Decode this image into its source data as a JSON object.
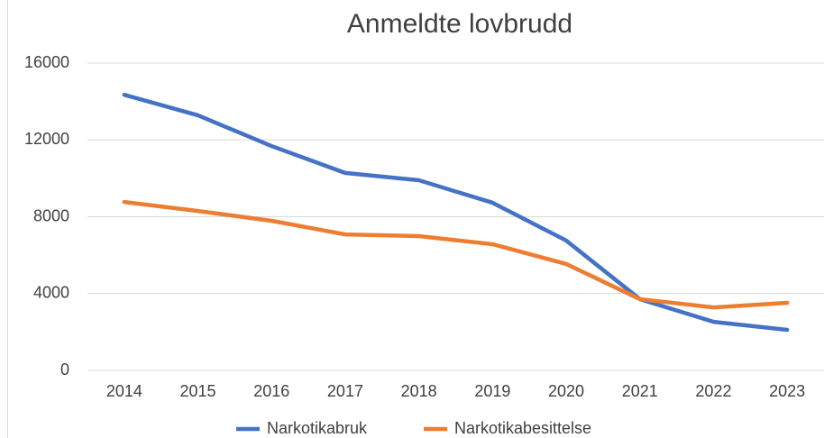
{
  "chart_data": {
    "type": "line",
    "title": "Anmeldte lovbrudd",
    "categories": [
      "2014",
      "2015",
      "2016",
      "2017",
      "2018",
      "2019",
      "2020",
      "2021",
      "2022",
      "2023"
    ],
    "series": [
      {
        "name": "Narkotikabruk",
        "color": "#4472c4",
        "values": [
          14350,
          13280,
          11680,
          10280,
          9900,
          8730,
          6760,
          3710,
          2530,
          2110
        ]
      },
      {
        "name": "Narkotikabesittelse",
        "color": "#ed7d31",
        "values": [
          8770,
          8300,
          7790,
          7080,
          6990,
          6570,
          5540,
          3710,
          3280,
          3520
        ]
      }
    ],
    "ylim": [
      0,
      16000
    ],
    "yticks": [
      0,
      4000,
      8000,
      12000,
      16000
    ],
    "grid": true,
    "legend": "bottom"
  }
}
